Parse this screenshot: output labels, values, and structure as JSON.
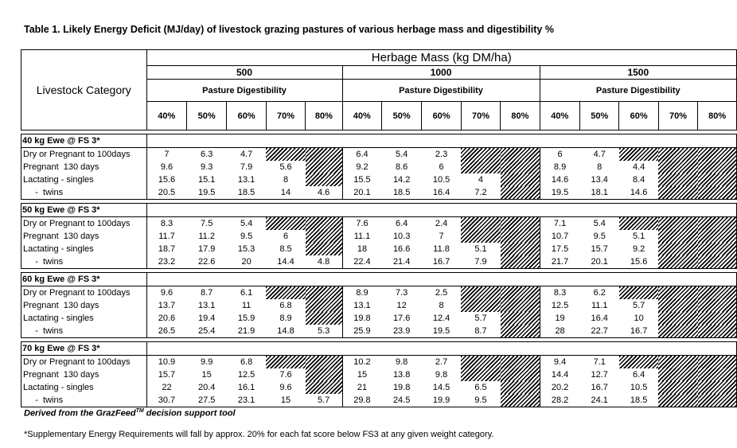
{
  "title": "Table 1. Likely Energy Deficit (MJ/day) of livestock grazing pastures of various herbage mass and digestibility %",
  "header": {
    "category_label": "Livestock Category",
    "mass_title": "Herbage Mass (kg DM/ha)",
    "masses": [
      "500",
      "1000",
      "1500"
    ],
    "digestibility_label": "Pasture Digestibility",
    "percents": [
      "40%",
      "50%",
      "60%",
      "70%",
      "80%"
    ]
  },
  "groups": [
    {
      "name": "40 kg Ewe @ FS 3*",
      "rows": [
        {
          "label": "Dry or Pregnant to 100days",
          "values": [
            "7",
            "6.3",
            "4.7",
            null,
            null,
            "6.4",
            "5.4",
            "2.3",
            null,
            null,
            "6",
            "4.7",
            null,
            null,
            null
          ]
        },
        {
          "label": "Pregnant  130 days",
          "values": [
            "9.6",
            "9.3",
            "7.9",
            "5.6",
            null,
            "9.2",
            "8.6",
            "6",
            null,
            null,
            "8.9",
            "8",
            "4.4",
            null,
            null
          ]
        },
        {
          "label": "Lactating - singles",
          "values": [
            "15.6",
            "15.1",
            "13.1",
            "8",
            null,
            "15.5",
            "14.2",
            "10.5",
            "4",
            null,
            "14.6",
            "13.4",
            "8.4",
            null,
            null
          ]
        },
        {
          "label": "     -  twins",
          "values": [
            "20.5",
            "19.5",
            "18.5",
            "14",
            "4.6",
            "20.1",
            "18.5",
            "16.4",
            "7.2",
            null,
            "19.5",
            "18.1",
            "14.6",
            null,
            null
          ]
        }
      ]
    },
    {
      "name": "50 kg Ewe @ FS 3*",
      "rows": [
        {
          "label": "Dry or Pregnant to 100days",
          "values": [
            "8.3",
            "7.5",
            "5.4",
            null,
            null,
            "7.6",
            "6.4",
            "2.4",
            null,
            null,
            "7.1",
            "5.4",
            null,
            null,
            null
          ]
        },
        {
          "label": "Pregnant  130 days",
          "values": [
            "11.7",
            "11.2",
            "9.5",
            "6",
            null,
            "11.1",
            "10.3",
            "7",
            null,
            null,
            "10.7",
            "9.5",
            "5.1",
            null,
            null
          ]
        },
        {
          "label": "Lactating - singles",
          "values": [
            "18.7",
            "17.9",
            "15.3",
            "8.5",
            null,
            "18",
            "16.6",
            "11.8",
            "5.1",
            null,
            "17.5",
            "15.7",
            "9.2",
            null,
            null
          ]
        },
        {
          "label": "     -  twins",
          "values": [
            "23.2",
            "22.6",
            "20",
            "14.4",
            "4.8",
            "22.4",
            "21.4",
            "16.7",
            "7.9",
            null,
            "21.7",
            "20.1",
            "15.6",
            null,
            null
          ]
        }
      ]
    },
    {
      "name": "60 kg Ewe @ FS 3*",
      "rows": [
        {
          "label": "Dry or Pregnant to 100days",
          "values": [
            "9.6",
            "8.7",
            "6.1",
            null,
            null,
            "8.9",
            "7.3",
            "2.5",
            null,
            null,
            "8.3",
            "6.2",
            null,
            null,
            null
          ]
        },
        {
          "label": "Pregnant  130 days",
          "values": [
            "13.7",
            "13.1",
            "11",
            "6.8",
            null,
            "13.1",
            "12",
            "8",
            null,
            null,
            "12.5",
            "11.1",
            "5.7",
            null,
            null
          ]
        },
        {
          "label": "Lactating - singles",
          "values": [
            "20.6",
            "19.4",
            "15.9",
            "8.9",
            null,
            "19.8",
            "17.6",
            "12.4",
            "5.7",
            null,
            "19",
            "16.4",
            "10",
            null,
            null
          ]
        },
        {
          "label": "     -  twins",
          "values": [
            "26.5",
            "25.4",
            "21.9",
            "14.8",
            "5.3",
            "25.9",
            "23.9",
            "19.5",
            "8.7",
            null,
            "28",
            "22.7",
            "16.7",
            null,
            null
          ]
        }
      ]
    },
    {
      "name": "70 kg Ewe @ FS 3*",
      "rows": [
        {
          "label": "Dry or Pregnant to 100days",
          "values": [
            "10.9",
            "9.9",
            "6.8",
            null,
            null,
            "10.2",
            "9.8",
            "2.7",
            null,
            null,
            "9.4",
            "7.1",
            null,
            null,
            null
          ]
        },
        {
          "label": "Pregnant  130 days",
          "values": [
            "15.7",
            "15",
            "12.5",
            "7.6",
            null,
            "15",
            "13.8",
            "9.8",
            null,
            null,
            "14.4",
            "12.7",
            "6.4",
            null,
            null
          ]
        },
        {
          "label": "Lactating - singles",
          "values": [
            "22",
            "20.4",
            "16.1",
            "9.6",
            null,
            "21",
            "19.8",
            "14.5",
            "6.5",
            null,
            "20.2",
            "16.7",
            "10.5",
            null,
            null
          ]
        },
        {
          "label": "     -  twins",
          "values": [
            "30.7",
            "27.5",
            "23.1",
            "15",
            "5.7",
            "29.8",
            "24.5",
            "19.9",
            "9.5",
            null,
            "28.2",
            "24.1",
            "18.5",
            null,
            null
          ]
        }
      ]
    }
  ],
  "footer": {
    "source_prefix": "Derived from the GrazFeed",
    "source_tm": "TM",
    "source_suffix": " decision support tool",
    "note": "*Supplementary Energy Requirements will fall by approx. 20% for each fat score below FS3 at any given weight category."
  }
}
